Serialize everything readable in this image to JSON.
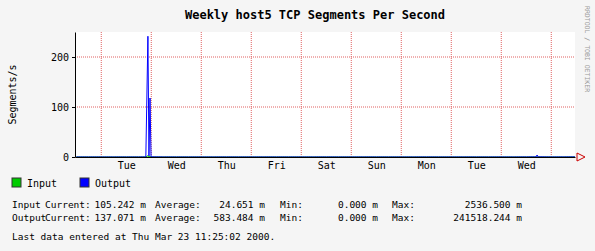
{
  "chart_data": {
    "type": "line",
    "title": "Weekly host5 TCP Segments Per Second",
    "y_label": "Segments/s",
    "credit": "RRDTOOL / TOBI OETIKER",
    "footnote": "Last data entered at Thu Mar 23 11:25:02 2000.",
    "x": [
      12,
      18,
      24,
      30,
      36,
      42,
      45.4,
      46.4,
      46.9,
      47.4,
      47.9,
      54,
      60,
      66,
      72,
      78,
      84,
      90,
      96,
      102,
      108,
      114,
      120,
      126,
      132,
      138,
      144,
      150,
      156,
      162,
      168,
      174,
      180,
      186,
      192,
      198,
      204,
      210,
      216,
      222,
      228,
      232.7,
      233.2,
      233.7,
      240,
      246,
      251.4
    ],
    "xlim": [
      11.4,
      251.4
    ],
    "xticks": [
      {
        "value": 36,
        "label": "Tue"
      },
      {
        "value": 60,
        "label": "Wed"
      },
      {
        "value": 84,
        "label": "Thu"
      },
      {
        "value": 108,
        "label": "Fri"
      },
      {
        "value": 132,
        "label": "Sat"
      },
      {
        "value": 156,
        "label": "Sun"
      },
      {
        "value": 180,
        "label": "Mon"
      },
      {
        "value": 204,
        "label": "Tue"
      },
      {
        "value": 228,
        "label": "Wed"
      }
    ],
    "ylim": [
      0,
      250
    ],
    "yticks": [
      0,
      100,
      200
    ],
    "grid": true,
    "legend": "bottom",
    "stats_labels": [
      "Current:",
      "Average:",
      "Min:",
      "Max:"
    ],
    "series": [
      {
        "name": "Input",
        "color": "#00cc00",
        "values": [
          0.02,
          0.01,
          0.02,
          0.03,
          0.01,
          0.02,
          0.05,
          2.5365,
          0.1,
          1.2,
          0.05,
          0.02,
          0.01,
          0.03,
          0.02,
          0.01,
          0.02,
          0.03,
          0.01,
          0.02,
          0.03,
          0.01,
          0.02,
          0.03,
          0.01,
          0.02,
          0.02,
          0.03,
          0.01,
          0.02,
          0.03,
          0.02,
          0.01,
          0.03,
          0.02,
          0.01,
          0.02,
          0.03,
          0.02,
          0.01,
          0.03,
          0.05,
          0.2,
          0.04,
          0.02,
          0.03,
          0.105
        ],
        "stats": [
          "105.242 m",
          "24.651 m",
          "0.000 m",
          "2536.500 m"
        ]
      },
      {
        "name": "Output",
        "color": "#0000ff",
        "values": [
          0.02,
          0.03,
          0.02,
          0.01,
          0.02,
          0.03,
          0.1,
          241.518,
          2,
          118,
          0.3,
          0.05,
          0.02,
          0.03,
          0.01,
          0.02,
          0.04,
          0.02,
          0.03,
          0.05,
          0.02,
          0.01,
          0.03,
          0.02,
          0.04,
          0.02,
          0.03,
          0.05,
          0.02,
          0.01,
          0.03,
          0.02,
          0.04,
          0.03,
          0.02,
          0.05,
          0.03,
          0.02,
          0.04,
          0.03,
          0.1,
          0.2,
          4,
          0.3,
          0.05,
          0.1,
          0.137
        ],
        "stats": [
          "137.071 m",
          "583.484 m",
          "0.000 m",
          "241518.244 m"
        ]
      }
    ]
  }
}
